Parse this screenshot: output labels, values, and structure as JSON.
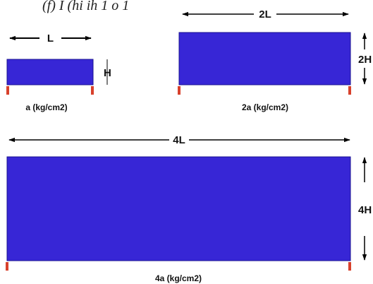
{
  "top_formula": "(f) I (hi ih 1 o 1",
  "colors": {
    "beam_fill": "#3726d6",
    "beam_stroke": "#1a1290",
    "support": "#d8412c",
    "line": "#000000"
  },
  "small_beam": {
    "length_label": "L",
    "height_label": "H",
    "load_caption": "a (kg/cm2)"
  },
  "medium_beam": {
    "length_label": "2L",
    "height_label": "2H",
    "load_caption": "2a (kg/cm2)"
  },
  "large_beam": {
    "length_label": "4L",
    "height_label": "4H",
    "load_caption": "4a (kg/cm2)"
  }
}
